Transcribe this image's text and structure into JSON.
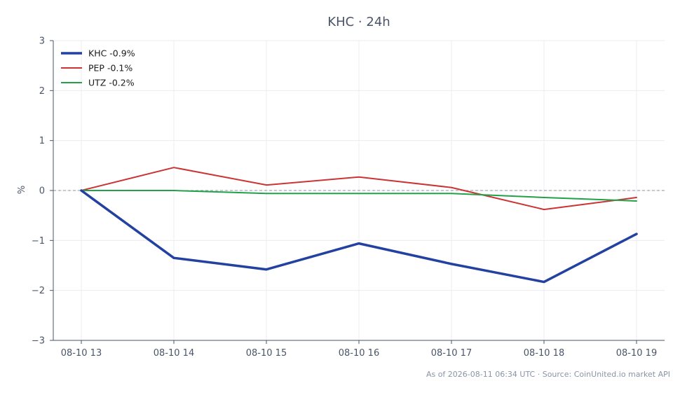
{
  "chart_data": {
    "type": "line",
    "title": "KHC · 24h",
    "xlabel": "",
    "ylabel": "%",
    "categories": [
      "08-10 13",
      "08-10 14",
      "08-10 15",
      "08-10 16",
      "08-10 17",
      "08-10 18",
      "08-10 19"
    ],
    "ylim": [
      -3,
      3
    ],
    "yticks": [
      3,
      2,
      1,
      0,
      -1,
      -2,
      -3
    ],
    "ytick_labels": [
      "3",
      "2",
      "1",
      "0",
      "−1",
      "−2",
      "−3"
    ],
    "grid": true,
    "zero_reference_line": true,
    "legend_position": "top-left",
    "series": [
      {
        "name": "KHC -0.9%",
        "color": "#2241a0",
        "values": [
          0,
          -1.35,
          -1.58,
          -1.06,
          -1.47,
          -1.83,
          -0.87
        ]
      },
      {
        "name": "PEP -0.1%",
        "color": "#cc3333",
        "values": [
          0,
          0.46,
          0.11,
          0.27,
          0.06,
          -0.38,
          -0.14
        ]
      },
      {
        "name": "UTZ -0.2%",
        "color": "#22a04a",
        "values": [
          0,
          0.0,
          -0.06,
          -0.06,
          -0.06,
          -0.14,
          -0.21
        ]
      }
    ],
    "footer": "As of 2026-08-11 06:34 UTC · Source: CoinUnited.io market API"
  }
}
